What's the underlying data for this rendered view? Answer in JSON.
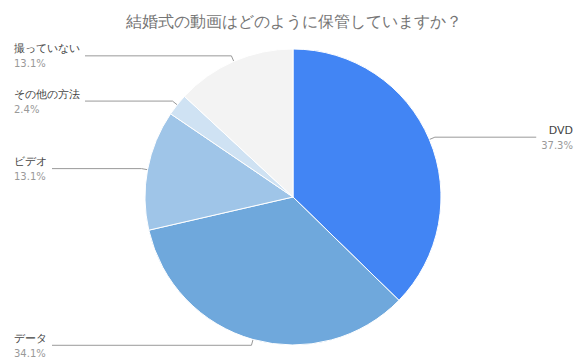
{
  "chart_data": {
    "type": "pie",
    "title": "結婚式の動画はどのように保管していますか？",
    "categories": [
      "DVD",
      "データ",
      "ビデオ",
      "その他の方法",
      "撮っていない"
    ],
    "values": [
      37.3,
      34.1,
      13.1,
      2.4,
      13.1
    ],
    "value_labels": [
      "37.3%",
      "34.1%",
      "13.1%",
      "2.4%",
      "13.1%"
    ],
    "colors": [
      "#4285f4",
      "#6fa8dc",
      "#9fc5e8",
      "#cfe2f3",
      "#f3f3f3"
    ],
    "data_labels": true
  }
}
